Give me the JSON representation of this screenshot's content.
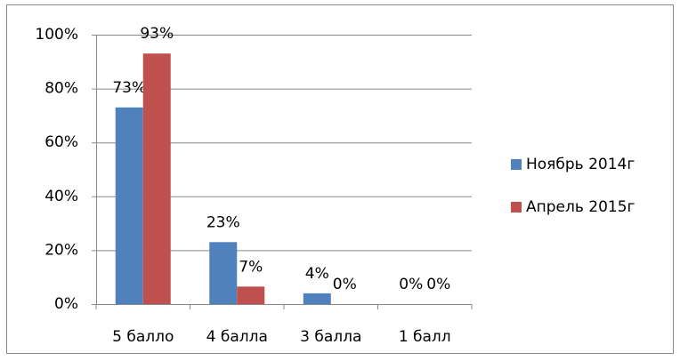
{
  "chart_data": {
    "type": "bar",
    "categories": [
      "5 балло",
      "4 балла",
      "3 балла",
      "1 балл"
    ],
    "series": [
      {
        "name": "Ноябрь 2014г",
        "color": "#4f81bd",
        "values": [
          73,
          23,
          4,
          0
        ],
        "value_labels": [
          "73%",
          "23%",
          "4%",
          "0%"
        ]
      },
      {
        "name": "Апрель 2015г",
        "color": "#c0504d",
        "values": [
          93,
          6.5,
          0,
          0
        ],
        "value_labels": [
          "93%",
          "7%",
          "0%",
          "0%"
        ]
      }
    ],
    "ylim": [
      0,
      100
    ],
    "yticks": [
      {
        "value": 0,
        "label": "0%"
      },
      {
        "value": 20,
        "label": "20%"
      },
      {
        "value": 40,
        "label": "40%"
      },
      {
        "value": 60,
        "label": "60%"
      },
      {
        "value": 80,
        "label": "80%"
      },
      {
        "value": 100,
        "label": "100%"
      }
    ],
    "grid": true,
    "legend": "right"
  }
}
